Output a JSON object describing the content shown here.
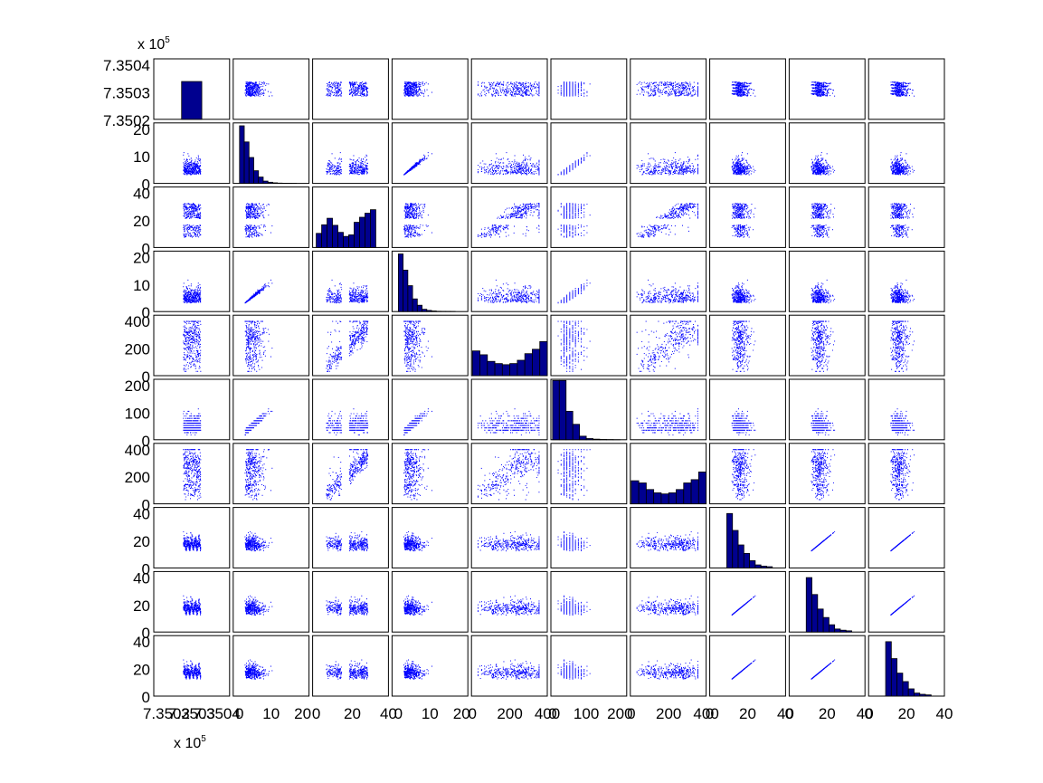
{
  "chart_data": {
    "type": "scatter",
    "grid": false,
    "matrix_size": 10,
    "colors": {
      "points": "#0000ff",
      "bar_fill": "#00008f",
      "bar_edge": "#000000",
      "axes": "#000000"
    },
    "exponent": {
      "base": "x 10",
      "power": "5"
    },
    "y_ticks": [
      [
        "7.3504",
        "7.3503",
        "7.3502"
      ],
      [
        "20",
        "10",
        "0"
      ],
      [
        "40",
        "20",
        "0"
      ],
      [
        "20",
        "10",
        "0"
      ],
      [
        "400",
        "200",
        "0"
      ],
      [
        "200",
        "100",
        "0"
      ],
      [
        "400",
        "200",
        "0"
      ],
      [
        "40",
        "20",
        "0"
      ],
      [
        "40",
        "20",
        "0"
      ],
      [
        "40",
        "20",
        "0"
      ]
    ],
    "x_ticks": [
      [
        "7.3502",
        "7.3503",
        "7.3504"
      ],
      [
        "0",
        "10",
        "20"
      ],
      [
        "0",
        "20",
        "40"
      ],
      [
        "0",
        "10",
        "20"
      ],
      [
        "0",
        "200",
        "400"
      ],
      [
        "0",
        "100",
        "200"
      ],
      [
        "0",
        "200",
        "400"
      ],
      [
        "0",
        "20",
        "40"
      ],
      [
        "0",
        "20",
        "40"
      ],
      [
        "0",
        "20",
        "40"
      ]
    ],
    "variables": [
      {
        "range": [
          735015,
          735045
        ],
        "tick_values": [
          735020,
          735030,
          735040
        ]
      },
      {
        "range": [
          -2,
          22
        ],
        "tick_values": [
          0,
          10,
          20
        ]
      },
      {
        "range": [
          -2,
          40
        ],
        "tick_values": [
          0,
          20,
          40
        ]
      },
      {
        "range": [
          -2,
          22
        ],
        "tick_values": [
          0,
          10,
          20
        ]
      },
      {
        "range": [
          -5,
          400
        ],
        "tick_values": [
          0,
          200,
          400
        ]
      },
      {
        "range": [
          -5,
          220
        ],
        "tick_values": [
          0,
          100,
          200
        ]
      },
      {
        "range": [
          -5,
          400
        ],
        "tick_values": [
          0,
          200,
          400
        ]
      },
      {
        "range": [
          0,
          40
        ],
        "tick_values": [
          0,
          20,
          40
        ]
      },
      {
        "range": [
          0,
          40
        ],
        "tick_values": [
          0,
          20,
          40
        ]
      },
      {
        "range": [
          0,
          40
        ],
        "tick_values": [
          0,
          20,
          40
        ]
      }
    ],
    "histograms": [
      {
        "bins": [
          735026,
          735034
        ],
        "counts": [
          100
        ],
        "ymax": 160
      },
      {
        "bins": [
          0,
          1.5,
          3,
          4.5,
          6,
          7.5,
          9,
          10.5,
          12,
          13.5,
          15,
          16.5,
          18,
          19.5,
          21
        ],
        "counts": [
          100,
          72,
          45,
          22,
          11,
          4,
          2,
          1,
          0.5,
          0.3,
          0.2,
          0.1,
          0,
          0
        ],
        "ymax": 105
      },
      {
        "bins": [
          0,
          3,
          6,
          9,
          12,
          15,
          18,
          21,
          24,
          27,
          30,
          33,
          36
        ],
        "counts": [
          28,
          45,
          58,
          44,
          30,
          22,
          25,
          50,
          60,
          68,
          75,
          0
        ],
        "ymax": 120
      },
      {
        "bins": [
          0,
          1.5,
          3,
          4.5,
          6,
          7.5,
          9,
          10.5,
          12,
          13.5,
          15,
          16.5,
          18,
          19.5,
          21
        ],
        "counts": [
          100,
          72,
          45,
          22,
          11,
          4,
          2,
          1,
          0.5,
          0.3,
          0.2,
          0.1,
          0,
          0
        ],
        "ymax": 105
      },
      {
        "bins": [
          0,
          40,
          80,
          120,
          160,
          200,
          240,
          280,
          320,
          360,
          400
        ],
        "counts": [
          45,
          38,
          26,
          22,
          20,
          22,
          28,
          40,
          48,
          62
        ],
        "ymax": 110
      },
      {
        "bins": [
          0,
          20,
          40,
          60,
          80,
          100,
          120,
          140,
          160,
          180,
          200
        ],
        "counts": [
          100,
          100,
          48,
          26,
          6,
          2,
          1,
          0.5,
          0.3,
          0.1
        ],
        "ymax": 102
      },
      {
        "bins": [
          0,
          40,
          80,
          120,
          160,
          200,
          240,
          280,
          320,
          360,
          400
        ],
        "counts": [
          42,
          38,
          26,
          20,
          18,
          20,
          26,
          38,
          44,
          58
        ],
        "ymax": 110
      },
      {
        "bins": [
          0,
          3,
          6,
          9,
          12,
          15,
          18,
          21,
          24,
          27,
          30,
          33,
          36,
          39
        ],
        "counts": [
          0,
          0,
          0,
          90,
          62,
          38,
          24,
          12,
          5,
          3,
          2,
          0,
          0
        ],
        "ymax": 100
      },
      {
        "bins": [
          0,
          3,
          6,
          9,
          12,
          15,
          18,
          21,
          24,
          27,
          30,
          33,
          36,
          39
        ],
        "counts": [
          0,
          0,
          0,
          90,
          62,
          38,
          24,
          12,
          5,
          3,
          2,
          0,
          0
        ],
        "ymax": 100
      },
      {
        "bins": [
          0,
          3,
          6,
          9,
          12,
          15,
          18,
          21,
          24,
          27,
          30,
          33,
          36,
          39
        ],
        "counts": [
          0,
          0,
          0,
          90,
          62,
          38,
          24,
          12,
          5,
          3,
          2,
          0,
          0
        ],
        "ymax": 100
      }
    ]
  }
}
